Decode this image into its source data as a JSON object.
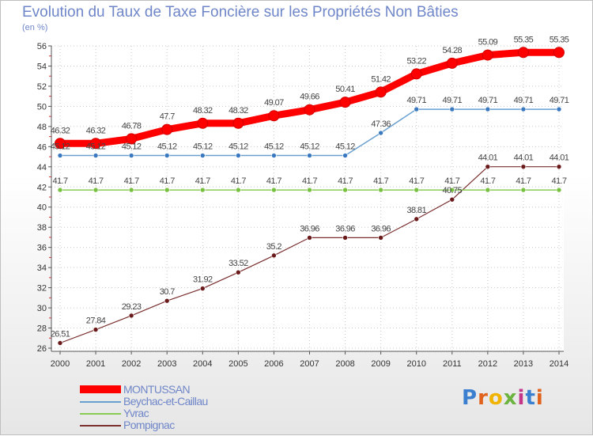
{
  "chart_data": {
    "type": "line",
    "title": "Evolution du Taux de Taxe Foncière sur les Propriétés Non Bâties",
    "ylabel": "(en %)",
    "xlabel": "",
    "ylim": [
      26,
      56
    ],
    "ytick_step": 2,
    "categories": [
      "2000",
      "2001",
      "2002",
      "2003",
      "2004",
      "2005",
      "2006",
      "2007",
      "2008",
      "2009",
      "2010",
      "2011",
      "2012",
      "2013",
      "2014"
    ],
    "series": [
      {
        "name": "MONTUSSAN",
        "color": "#ff0000",
        "values": [
          46.32,
          46.32,
          46.78,
          47.7,
          48.32,
          48.32,
          49.07,
          49.66,
          50.41,
          51.42,
          53.22,
          54.28,
          55.09,
          55.35,
          55.35
        ],
        "labels": [
          "46.32",
          "46.32",
          "46.78",
          "47.7",
          "48.32",
          "48.32",
          "49.07",
          "49.66",
          "50.41",
          "51.42",
          "53.22",
          "54.28",
          "55.09",
          "55.35",
          "55.35"
        ]
      },
      {
        "name": "Beychac-et-Caillau",
        "color": "#6aa0d0",
        "values": [
          45.12,
          45.12,
          45.12,
          45.12,
          45.12,
          45.12,
          45.12,
          45.12,
          45.12,
          47.36,
          49.71,
          49.71,
          49.71,
          49.71,
          49.71
        ],
        "labels": [
          "45.12",
          "45.12",
          "45.12",
          "45.12",
          "45.12",
          "45.12",
          "45.12",
          "45.12",
          "45.12",
          "47.36",
          "49.71",
          "49.71",
          "49.71",
          "49.71",
          "49.71"
        ]
      },
      {
        "name": "Yvrac",
        "color": "#88cc55",
        "values": [
          41.7,
          41.7,
          41.7,
          41.7,
          41.7,
          41.7,
          41.7,
          41.7,
          41.7,
          41.7,
          41.7,
          41.7,
          41.7,
          41.7,
          41.7
        ],
        "labels": [
          "41.7",
          "41.7",
          "41.7",
          "41.7",
          "41.7",
          "41.7",
          "41.7",
          "41.7",
          "41.7",
          "41.7",
          "41.7",
          "41.7",
          "41.7",
          "41.7",
          "41.7"
        ]
      },
      {
        "name": "Pompignac",
        "color": "#7a2e2e",
        "values": [
          26.51,
          27.84,
          29.23,
          30.7,
          31.92,
          33.52,
          35.2,
          36.96,
          36.96,
          36.96,
          38.81,
          40.75,
          44.01,
          44.01,
          44.01
        ],
        "labels": [
          "26.51",
          "27.84",
          "29.23",
          "30.7",
          "31.92",
          "33.52",
          "35.2",
          "36.96",
          "36.96",
          "36.96",
          "38.81",
          "40.75",
          "44.01",
          "44.01",
          "44.01"
        ]
      }
    ]
  },
  "brand": {
    "name": "Proxiti",
    "letters": [
      "P",
      "r",
      "o",
      "x",
      "i",
      "t",
      "i"
    ],
    "colors": [
      "#3a7fd0",
      "#e0621c",
      "#f0b400",
      "#6db33f",
      "#c4368a",
      "#3a7fd0",
      "#e0621c"
    ]
  }
}
